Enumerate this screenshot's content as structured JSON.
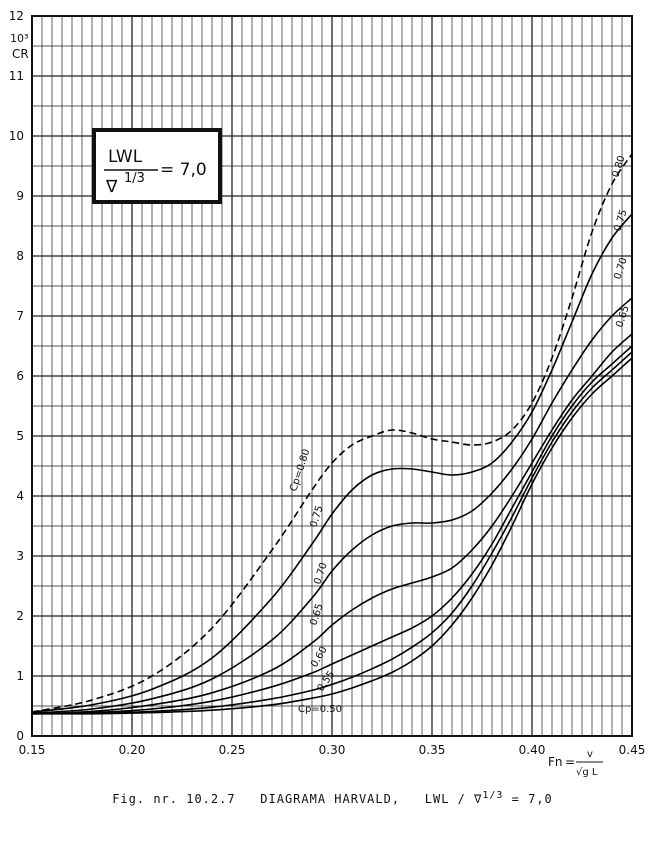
{
  "chart_data": {
    "type": "line",
    "title": "DIAGRAMA HARVALD",
    "caption": {
      "prefix": "Fig. nr. 10.2.7",
      "title": "DIAGRAMA HARVALD,",
      "ratio": "LWL / ∇",
      "exp": "1/3",
      "value": "= 7,0"
    },
    "inset": {
      "numerator": "LWL",
      "denominator": "∇",
      "exp": "1/3",
      "value": "= 7,0"
    },
    "ylabel": {
      "power": "10³",
      "symbol": "CR"
    },
    "xlabel": {
      "symbol": "Fn",
      "formula_num": "v",
      "formula_den": "√g L"
    },
    "xlim": [
      0.15,
      0.45
    ],
    "ylim": [
      0,
      12
    ],
    "x_ticks": [
      "0.15",
      "0.20",
      "0.25",
      "0.30",
      "0.35",
      "0.40",
      "0.45"
    ],
    "y_ticks": [
      "0",
      "1",
      "2",
      "3",
      "4",
      "5",
      "6",
      "7",
      "8",
      "9",
      "10",
      "11",
      "12"
    ],
    "grid": true,
    "series_labels": [
      "Cp=0.80",
      "0.75",
      "0.70",
      "0.65",
      "0.60",
      "0.55",
      "Cp=0.50"
    ],
    "right_labels": [
      "0.80",
      "0.75",
      "0.70",
      "0.65"
    ],
    "series": [
      {
        "name": "0.80",
        "dashed": true,
        "x": [
          0.15,
          0.18,
          0.21,
          0.24,
          0.27,
          0.29,
          0.3,
          0.31,
          0.32,
          0.33,
          0.34,
          0.35,
          0.36,
          0.37,
          0.38,
          0.39,
          0.4,
          0.41,
          0.42,
          0.43,
          0.44,
          0.45
        ],
        "y": [
          0.4,
          0.6,
          1.0,
          1.8,
          3.1,
          4.1,
          4.55,
          4.85,
          5.0,
          5.1,
          5.05,
          4.95,
          4.9,
          4.85,
          4.9,
          5.1,
          5.55,
          6.3,
          7.3,
          8.4,
          9.2,
          9.7
        ]
      },
      {
        "name": "0.75",
        "dashed": false,
        "x": [
          0.15,
          0.18,
          0.21,
          0.24,
          0.27,
          0.29,
          0.3,
          0.31,
          0.32,
          0.33,
          0.34,
          0.35,
          0.36,
          0.37,
          0.38,
          0.39,
          0.4,
          0.41,
          0.42,
          0.43,
          0.44,
          0.45
        ],
        "y": [
          0.4,
          0.52,
          0.78,
          1.3,
          2.3,
          3.2,
          3.7,
          4.1,
          4.35,
          4.45,
          4.45,
          4.4,
          4.35,
          4.4,
          4.55,
          4.9,
          5.4,
          6.1,
          6.9,
          7.7,
          8.3,
          8.7
        ]
      },
      {
        "name": "0.70",
        "dashed": false,
        "x": [
          0.15,
          0.18,
          0.21,
          0.24,
          0.27,
          0.29,
          0.3,
          0.31,
          0.32,
          0.33,
          0.34,
          0.35,
          0.36,
          0.37,
          0.38,
          0.39,
          0.4,
          0.41,
          0.42,
          0.43,
          0.44,
          0.45
        ],
        "y": [
          0.38,
          0.45,
          0.62,
          0.95,
          1.6,
          2.3,
          2.75,
          3.1,
          3.35,
          3.5,
          3.55,
          3.55,
          3.6,
          3.75,
          4.05,
          4.45,
          4.95,
          5.55,
          6.1,
          6.6,
          7.0,
          7.3
        ]
      },
      {
        "name": "0.65",
        "dashed": false,
        "x": [
          0.15,
          0.18,
          0.21,
          0.24,
          0.27,
          0.29,
          0.3,
          0.31,
          0.32,
          0.33,
          0.34,
          0.35,
          0.36,
          0.37,
          0.38,
          0.39,
          0.4,
          0.41,
          0.42,
          0.43,
          0.44,
          0.45
        ],
        "y": [
          0.37,
          0.41,
          0.52,
          0.72,
          1.1,
          1.55,
          1.85,
          2.1,
          2.3,
          2.45,
          2.55,
          2.65,
          2.8,
          3.1,
          3.5,
          4.0,
          4.55,
          5.1,
          5.6,
          6.0,
          6.4,
          6.7
        ]
      },
      {
        "name": "0.60",
        "dashed": false,
        "x": [
          0.15,
          0.18,
          0.21,
          0.24,
          0.27,
          0.29,
          0.3,
          0.31,
          0.32,
          0.33,
          0.34,
          0.35,
          0.36,
          0.37,
          0.38,
          0.39,
          0.4,
          0.41,
          0.42,
          0.43,
          0.44,
          0.45
        ],
        "y": [
          0.37,
          0.39,
          0.45,
          0.58,
          0.82,
          1.05,
          1.2,
          1.35,
          1.5,
          1.65,
          1.8,
          2.0,
          2.3,
          2.7,
          3.2,
          3.8,
          4.4,
          5.0,
          5.5,
          5.9,
          6.2,
          6.5
        ]
      },
      {
        "name": "0.55",
        "dashed": false,
        "x": [
          0.15,
          0.18,
          0.21,
          0.24,
          0.27,
          0.29,
          0.3,
          0.31,
          0.32,
          0.33,
          0.34,
          0.35,
          0.36,
          0.37,
          0.38,
          0.39,
          0.4,
          0.41,
          0.42,
          0.43,
          0.44,
          0.45
        ],
        "y": [
          0.37,
          0.38,
          0.41,
          0.48,
          0.62,
          0.76,
          0.86,
          0.98,
          1.12,
          1.28,
          1.48,
          1.72,
          2.05,
          2.5,
          3.05,
          3.65,
          4.3,
          4.9,
          5.4,
          5.8,
          6.1,
          6.4
        ]
      },
      {
        "name": "0.50",
        "dashed": false,
        "x": [
          0.15,
          0.18,
          0.21,
          0.24,
          0.27,
          0.29,
          0.3,
          0.31,
          0.32,
          0.33,
          0.34,
          0.35,
          0.36,
          0.37,
          0.38,
          0.39,
          0.4,
          0.41,
          0.42,
          0.43,
          0.44,
          0.45
        ],
        "y": [
          0.37,
          0.37,
          0.39,
          0.43,
          0.52,
          0.63,
          0.7,
          0.8,
          0.92,
          1.06,
          1.25,
          1.5,
          1.85,
          2.3,
          2.85,
          3.5,
          4.2,
          4.8,
          5.3,
          5.7,
          6.0,
          6.3
        ]
      }
    ]
  }
}
